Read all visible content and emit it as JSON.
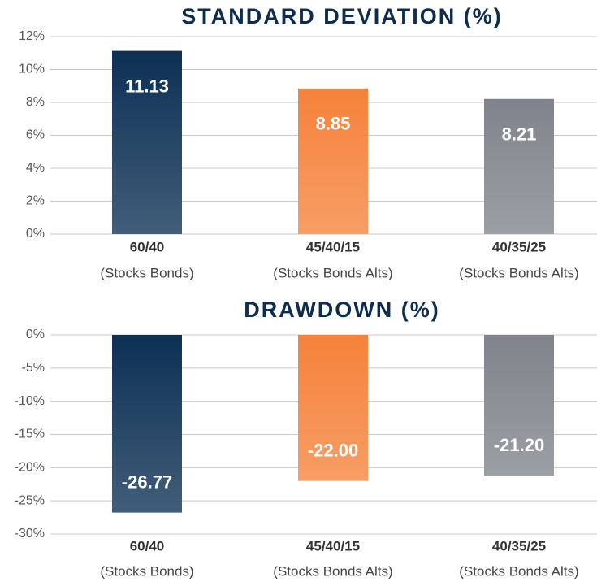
{
  "chart_data": [
    {
      "type": "bar",
      "title": "STANDARD DEVIATION (%)",
      "categories": [
        "60/40",
        "45/40/15",
        "40/35/25"
      ],
      "category_notes": [
        "(Stocks Bonds)",
        "(Stocks Bonds Alts)",
        "(Stocks Bonds Alts)"
      ],
      "values": [
        11.13,
        8.85,
        8.21
      ],
      "colors": [
        "#0c3054",
        "#f5823a",
        "#80838b"
      ],
      "ylim": [
        0,
        12
      ],
      "yticks": [
        {
          "value": 0,
          "label": "0%"
        },
        {
          "value": 2,
          "label": "2%"
        },
        {
          "value": 4,
          "label": "4%"
        },
        {
          "value": 6,
          "label": "6%"
        },
        {
          "value": 8,
          "label": "8%"
        },
        {
          "value": 10,
          "label": "10%"
        },
        {
          "value": 12,
          "label": "12%"
        }
      ],
      "grid": true
    },
    {
      "type": "bar",
      "title": "DRAWDOWN (%)",
      "categories": [
        "60/40",
        "45/40/15",
        "40/35/25"
      ],
      "category_notes": [
        "(Stocks Bonds)",
        "(Stocks Bonds Alts)",
        "(Stocks Bonds Alts)"
      ],
      "values": [
        -26.77,
        -22.0,
        -21.2
      ],
      "value_labels": [
        "-26.77",
        "-22.00",
        "-21.20"
      ],
      "colors": [
        "#0c3054",
        "#f5823a",
        "#80838b"
      ],
      "ylim": [
        -30,
        0
      ],
      "yticks": [
        {
          "value": 0,
          "label": "0%"
        },
        {
          "value": -5,
          "label": "-5%"
        },
        {
          "value": -10,
          "label": "-10%"
        },
        {
          "value": -15,
          "label": "-15%"
        },
        {
          "value": -20,
          "label": "-20%"
        },
        {
          "value": -25,
          "label": "-25%"
        },
        {
          "value": -30,
          "label": "-30%"
        }
      ],
      "grid": true
    }
  ]
}
